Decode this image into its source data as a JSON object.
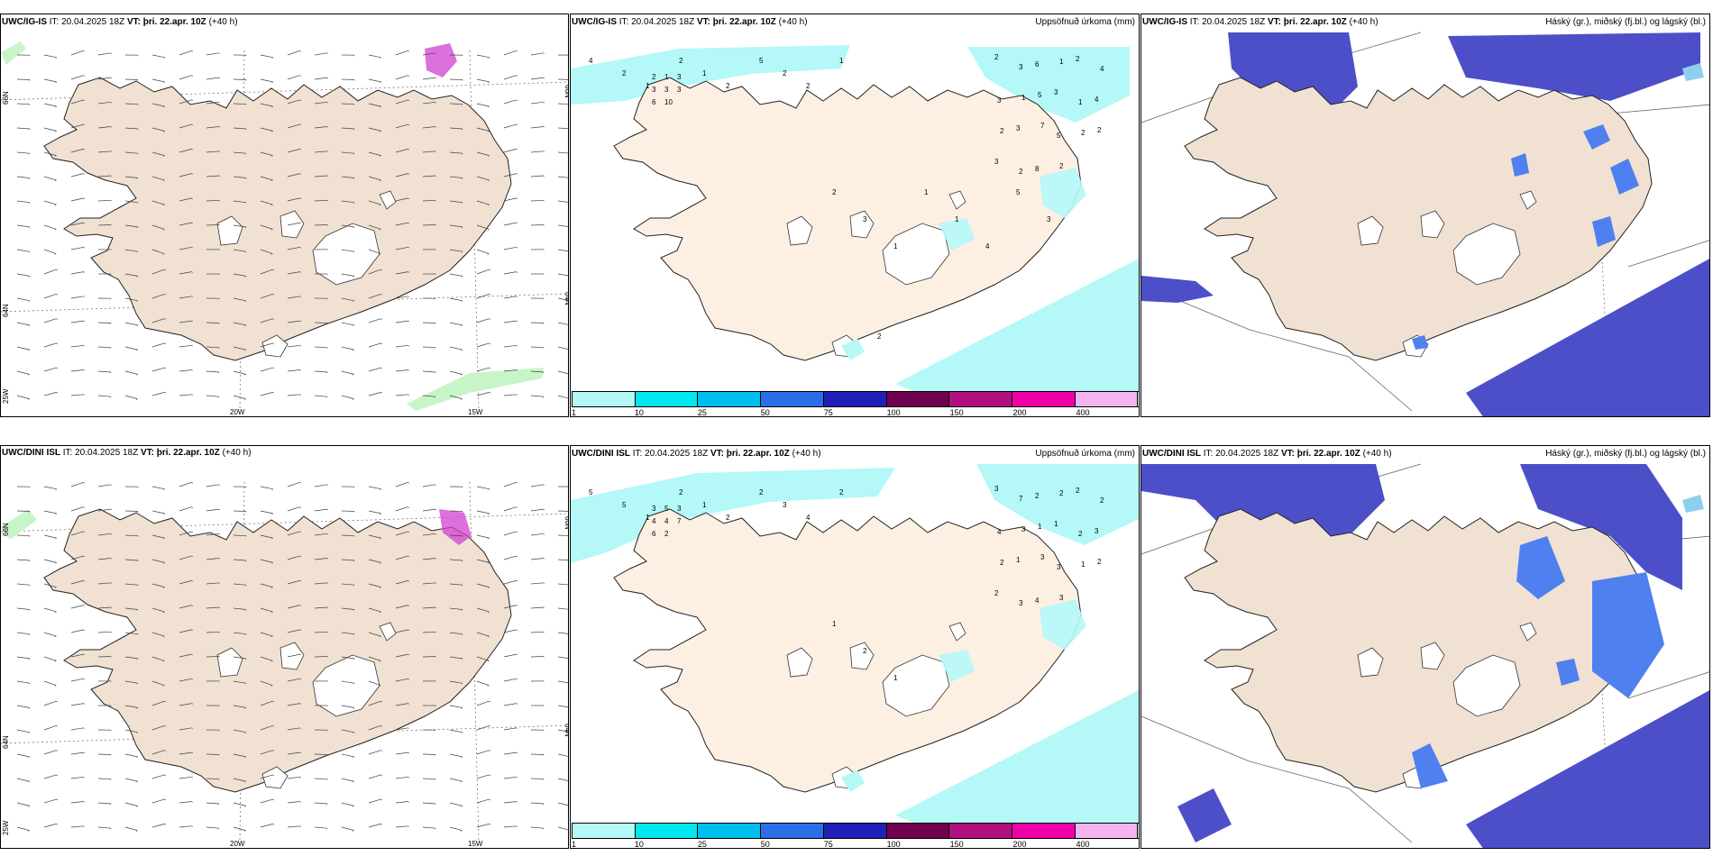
{
  "rows": [
    {
      "model": "UWC/IG-IS",
      "it_label": "IT:",
      "it_value": "20.04.2025 18Z",
      "vt_label": "VT:",
      "vt_value": "þri. 22.apr. 10Z",
      "lead": "(+40 h)",
      "lon_labels": [
        "20W",
        "15W"
      ],
      "lat_left": [
        "66N",
        "64N",
        "25W"
      ],
      "lat_right": [
        "66N",
        "64N"
      ],
      "precip_numbers": [
        "2",
        "3",
        "6",
        "1",
        "2",
        "4",
        "3",
        "1",
        "5",
        "3",
        "1",
        "4",
        "2",
        "3",
        "7",
        "5",
        "2",
        "2",
        "3",
        "2",
        "8",
        "2",
        "4",
        "2",
        "1",
        "2",
        "1",
        "2",
        "5",
        "2",
        "2",
        "1",
        "2",
        "1",
        "3",
        "3",
        "3",
        "3",
        "6",
        "10",
        "2",
        "3"
      ],
      "precip_extra_numbers": [
        "1",
        "1",
        "1",
        "4",
        "5",
        "3",
        "2"
      ]
    },
    {
      "model": "UWC/DINI ISL",
      "it_label": "IT:",
      "it_value": "20.04.2025 18Z",
      "vt_label": "VT:",
      "vt_value": "þri. 22.apr. 10Z",
      "lead": "(+40 h)",
      "lon_labels": [
        "20W",
        "15W"
      ],
      "lat_left": [
        "66N",
        "64N",
        "25W"
      ],
      "lat_right": [
        "66N",
        "64N"
      ],
      "precip_numbers": [
        "3",
        "7",
        "2",
        "2",
        "2",
        "2",
        "4",
        "3",
        "1",
        "1",
        "2",
        "3",
        "2",
        "1",
        "3",
        "3",
        "1",
        "2",
        "2",
        "3",
        "4",
        "3",
        "5",
        "5",
        "1",
        "2",
        "1",
        "2",
        "2",
        "3",
        "4",
        "2",
        "3",
        "5",
        "3",
        "4",
        "4",
        "7",
        "6",
        "2"
      ],
      "precip_extra_numbers": [
        "1",
        "2",
        "1"
      ]
    }
  ],
  "precip_title": "Uppsöfnuð úrkoma (mm)",
  "cloud_title": "Háský (gr.), miðský (fj.bl.) og lágský (bl.)",
  "legend": {
    "ticks": [
      "1",
      "10",
      "25",
      "50",
      "75",
      "100",
      "150",
      "200",
      "400"
    ],
    "colors": [
      "#b4f8f8",
      "#00e8ee",
      "#00bfee",
      "#2a6fe6",
      "#2020b8",
      "#700050",
      "#b0107e",
      "#f000a8",
      "#f4b4f0"
    ]
  },
  "colors": {
    "land": "#f0e1d2",
    "land_precip": "#fdf0e3",
    "precip_light": "#b4f8f8",
    "cloud_high": "#8cd0ee",
    "cloud_mid": "#5080f0",
    "cloud_low": "#4d4fc8",
    "glacier": "#ffffff",
    "mslp_green": "#c8f5c8",
    "mslp_magenta": "#d040d0"
  }
}
